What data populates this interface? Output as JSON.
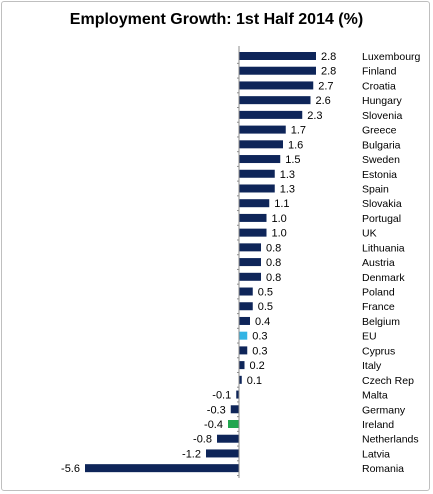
{
  "chart_data": {
    "type": "bar",
    "orientation": "horizontal",
    "title": "Employment Growth: 1st Half 2014 (%)",
    "xlabel": "",
    "ylabel": "",
    "xlim": [
      -5.6,
      2.8
    ],
    "grid": false,
    "legend": "none",
    "categories": [
      "Luxembourg",
      "Finland",
      "Croatia",
      "Hungary",
      "Slovenia",
      "Greece",
      "Bulgaria",
      "Sweden",
      "Estonia",
      "Spain",
      "Slovakia",
      "Portugal",
      "UK",
      "Lithuania",
      "Austria",
      "Denmark",
      "Poland",
      "France",
      "Belgium",
      "EU",
      "Cyprus",
      "Italy",
      "Czech Rep",
      "Malta",
      "Germany",
      "Ireland",
      "Netherlands",
      "Latvia",
      "Romania"
    ],
    "values": [
      2.8,
      2.8,
      2.7,
      2.6,
      2.3,
      1.7,
      1.6,
      1.5,
      1.3,
      1.3,
      1.1,
      1.0,
      1.0,
      0.8,
      0.8,
      0.8,
      0.5,
      0.5,
      0.4,
      0.3,
      0.3,
      0.2,
      0.1,
      -0.1,
      -0.3,
      -0.4,
      -0.8,
      -1.2,
      -5.6
    ],
    "value_labels": [
      "2.8",
      "2.8",
      "2.7",
      "2.6",
      "2.3",
      "1.7",
      "1.6",
      "1.5",
      "1.3",
      "1.3",
      "1.1",
      "1.0",
      "1.0",
      "0.8",
      "0.8",
      "0.8",
      "0.5",
      "0.5",
      "0.4",
      "0.3",
      "0.3",
      "0.2",
      "0.1",
      "-0.1",
      "-0.3",
      "-0.4",
      "-0.8",
      "-1.2",
      "-5.6"
    ],
    "colors": {
      "default": "#0e2559",
      "EU": "#33b4e4",
      "Ireland": "#21a64f",
      "axis": "#8c8c8c",
      "text": "#000000"
    }
  }
}
